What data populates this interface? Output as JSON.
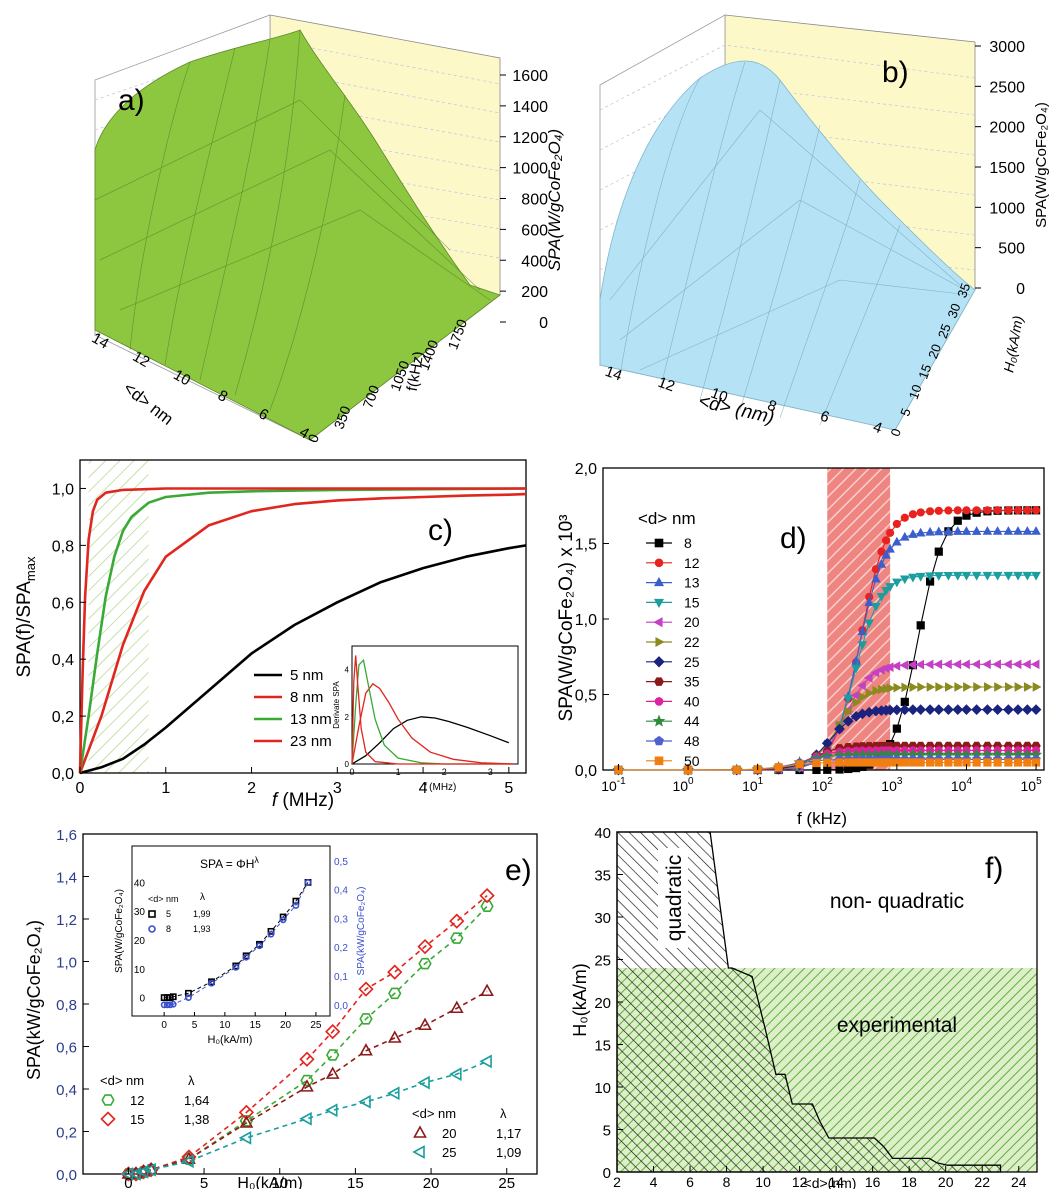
{
  "chart_data": [
    {
      "id": "a",
      "type": "surface3d",
      "panel_label": "a)",
      "zlabel": "SPA(W/gCoFe₂O₄)",
      "zticks": [
        "0",
        "200",
        "400",
        "600",
        "800",
        "1000",
        "1200",
        "1400",
        "1600"
      ],
      "xlabel": "<d> nm",
      "xticks": [
        "14",
        "12",
        "10",
        "8",
        "6",
        "4"
      ],
      "ylabel": "f(kHz)",
      "yticks": [
        "0",
        "350",
        "700",
        "1050",
        "1400",
        "1750"
      ],
      "surface_color": "#8dc63f",
      "wall_color": "#fdf8c8",
      "peak_value": 1600
    },
    {
      "id": "b",
      "type": "surface3d",
      "panel_label": "b)",
      "zlabel": "SPA(W/gCoFe₂O₄)",
      "zticks": [
        "0",
        "500",
        "1000",
        "1500",
        "2000",
        "2500",
        "3000"
      ],
      "xlabel": "<d> (nm)",
      "xticks": [
        "14",
        "12",
        "10",
        "8",
        "6",
        "4"
      ],
      "ylabel": "H₀(kA/m)",
      "yticks": [
        "0",
        "5",
        "10",
        "15",
        "20",
        "25",
        "30",
        "35"
      ],
      "surface_color": "#b5e2f5",
      "wall_color": "#fdf8c8",
      "peak_value": 3000
    },
    {
      "id": "c",
      "type": "line",
      "panel_label": "c)",
      "xlabel_italic": "f",
      "xlabel_rest": " (MHz)",
      "ylabel": "SPA(f)/SPA",
      "ylabel_sub": "max",
      "xlim": [
        0,
        5.2
      ],
      "ylim": [
        0,
        1.1
      ],
      "xticks": [
        "0",
        "1",
        "2",
        "3",
        "4",
        "5"
      ],
      "yticks": [
        "0,0",
        "0,2",
        "0,4",
        "0,6",
        "0,8",
        "1,0"
      ],
      "hatch_region": [
        0.1,
        0.8
      ],
      "series": [
        {
          "name": "5 nm",
          "color": "#000000",
          "x": [
            0,
            0.25,
            0.5,
            0.75,
            1,
            1.5,
            2,
            2.5,
            3,
            3.5,
            4,
            4.5,
            5,
            5.2
          ],
          "y": [
            0,
            0.02,
            0.05,
            0.1,
            0.16,
            0.29,
            0.42,
            0.52,
            0.6,
            0.67,
            0.72,
            0.76,
            0.79,
            0.8
          ]
        },
        {
          "name": "8 nm",
          "color": "#e0261e",
          "x": [
            0,
            0.25,
            0.5,
            0.75,
            1,
            1.5,
            2,
            2.5,
            3,
            3.5,
            4,
            4.5,
            5,
            5.2
          ],
          "y": [
            0,
            0.2,
            0.45,
            0.64,
            0.76,
            0.87,
            0.92,
            0.945,
            0.958,
            0.965,
            0.97,
            0.975,
            0.978,
            0.98
          ]
        },
        {
          "name": "13 nm",
          "color": "#3aa935",
          "x": [
            0,
            0.1,
            0.2,
            0.3,
            0.4,
            0.5,
            0.6,
            0.8,
            1,
            1.5,
            2,
            3,
            5.2
          ],
          "y": [
            0,
            0.2,
            0.42,
            0.62,
            0.76,
            0.85,
            0.9,
            0.95,
            0.97,
            0.985,
            0.99,
            0.995,
            1.0
          ]
        },
        {
          "name": "23 nm",
          "color": "#e0261e",
          "x": [
            0,
            0.03,
            0.06,
            0.1,
            0.15,
            0.2,
            0.3,
            0.5,
            1,
            5.2
          ],
          "y": [
            0,
            0.35,
            0.62,
            0.82,
            0.92,
            0.96,
            0.985,
            0.995,
            1.0,
            1.0
          ]
        }
      ],
      "inset": {
        "ylabel": "Derivate SPA",
        "xlabel_italic": "f",
        "xlabel_rest": " (MHz)",
        "xticks": [
          "0",
          "1",
          "2",
          "3"
        ],
        "yticks": [
          "0",
          "2",
          "4"
        ],
        "xlim": [
          0,
          3.6
        ],
        "ylim": [
          0,
          5
        ],
        "series": [
          {
            "color": "#000000",
            "x": [
              0,
              0.3,
              0.6,
              0.9,
              1.2,
              1.5,
              1.8,
              2.1,
              2.5,
              3,
              3.4
            ],
            "y": [
              0,
              0.35,
              0.9,
              1.5,
              1.85,
              2.0,
              1.95,
              1.8,
              1.55,
              1.2,
              0.9
            ]
          },
          {
            "color": "#e0261e",
            "x": [
              0,
              0.15,
              0.3,
              0.45,
              0.6,
              0.8,
              1.0,
              1.3,
              1.7,
              2.2,
              2.8,
              3.5
            ],
            "y": [
              0,
              1.6,
              3.0,
              3.4,
              3.2,
              2.6,
              1.9,
              1.1,
              0.5,
              0.2,
              0.05,
              0
            ]
          },
          {
            "color": "#3aa935",
            "x": [
              0,
              0.08,
              0.15,
              0.25,
              0.35,
              0.5,
              0.7,
              1.0,
              1.5,
              2,
              3.5
            ],
            "y": [
              0,
              2.5,
              4.2,
              4.4,
              3.4,
              1.9,
              0.8,
              0.25,
              0.05,
              0,
              0
            ]
          },
          {
            "color": "#e0261e",
            "x": [
              0,
              0.04,
              0.08,
              0.12,
              0.2,
              0.3,
              0.5,
              1,
              3.5
            ],
            "y": [
              0,
              3.5,
              4.6,
              3.5,
              1.5,
              0.5,
              0.1,
              0,
              0
            ]
          }
        ]
      }
    },
    {
      "id": "d",
      "type": "scatter",
      "panel_label": "d)",
      "xlabel": "f (kHz)",
      "ylabel": "SPA(W/gCoFe₂O₄) x 10³",
      "xscale": "log",
      "xlim": [
        0.06,
        130000
      ],
      "ylim": [
        0,
        2.0
      ],
      "xticks": [
        {
          "e": "-1"
        },
        {
          "e": "0"
        },
        {
          "e": "1"
        },
        {
          "e": "2"
        },
        {
          "e": "3"
        },
        {
          "e": "4"
        },
        {
          "e": "5"
        }
      ],
      "yticks": [
        "0,0",
        "0,5",
        "1,0",
        "1,5",
        "2,0"
      ],
      "highlight_band": [
        100,
        800
      ],
      "legend_title": "<d> nm",
      "series": [
        {
          "name": "8",
          "color": "#000000",
          "marker": "square",
          "plateau": 1.72,
          "fc": 2000
        },
        {
          "name": "12",
          "color": "#e8221f",
          "marker": "circle",
          "plateau": 1.72,
          "fc": 300
        },
        {
          "name": "13",
          "color": "#3a5fcd",
          "marker": "tri-up",
          "plateau": 1.58,
          "fc": 280
        },
        {
          "name": "15",
          "color": "#1a9e9e",
          "marker": "tri-down",
          "plateau": 1.29,
          "fc": 250
        },
        {
          "name": "20",
          "color": "#c441c4",
          "marker": "tri-left",
          "plateau": 0.7,
          "fc": 180
        },
        {
          "name": "22",
          "color": "#8a8a1e",
          "marker": "tri-right",
          "plateau": 0.55,
          "fc": 140
        },
        {
          "name": "25",
          "color": "#1a237e",
          "marker": "diamond",
          "plateau": 0.4,
          "fc": 110
        },
        {
          "name": "35",
          "color": "#8b1a1a",
          "marker": "hexagon",
          "plateau": 0.16,
          "fc": 60
        },
        {
          "name": "40",
          "color": "#e020a0",
          "marker": "circle",
          "plateau": 0.13,
          "fc": 50
        },
        {
          "name": "44",
          "color": "#2e8b3a",
          "marker": "star",
          "plateau": 0.1,
          "fc": 40
        },
        {
          "name": "48",
          "color": "#5060d0",
          "marker": "pentagon",
          "plateau": 0.07,
          "fc": 30
        },
        {
          "name": "50",
          "color": "#f07f10",
          "marker": "square",
          "plateau": 0.05,
          "fc": 25
        }
      ]
    },
    {
      "id": "e",
      "type": "scatter",
      "panel_label": "e)",
      "xlabel": "H₀(kA/m)",
      "ylabel": "SPA(kW/gCoFe₂O₄)",
      "xlim": [
        -3,
        27
      ],
      "ylim": [
        0,
        1.6
      ],
      "xticks": [
        "0",
        "5",
        "10",
        "15",
        "20",
        "25"
      ],
      "yticks": [
        "0,0",
        "0,2",
        "0,4",
        "0,6",
        "0,8",
        "1,0",
        "1,2",
        "1,4",
        "1,6"
      ],
      "legend1": {
        "header_d": "<d> nm",
        "header_l": "λ",
        "rows": [
          {
            "d": "12",
            "l": "1,64"
          },
          {
            "d": "15",
            "l": "1,38"
          }
        ]
      },
      "legend2": {
        "header_d": "<d> nm",
        "header_l": "λ",
        "rows": [
          {
            "d": "20",
            "l": "1,17"
          },
          {
            "d": "25",
            "l": "1,09"
          }
        ]
      },
      "series": [
        {
          "name": "12",
          "color": "#3aa935",
          "marker": "hexagon",
          "x": [
            0,
            0.5,
            1,
            1.5,
            4,
            7.8,
            11.8,
            13.5,
            15.7,
            17.6,
            19.6,
            21.7,
            23.7
          ],
          "y": [
            0,
            0,
            0.01,
            0.02,
            0.07,
            0.25,
            0.44,
            0.56,
            0.73,
            0.85,
            0.99,
            1.11,
            1.26
          ]
        },
        {
          "name": "15",
          "color": "#e0261e",
          "marker": "diamond",
          "x": [
            0,
            0.5,
            1,
            1.5,
            4,
            7.8,
            11.8,
            13.5,
            15.7,
            17.6,
            19.6,
            21.7,
            23.7
          ],
          "y": [
            0,
            0,
            0.01,
            0.02,
            0.08,
            0.29,
            0.54,
            0.67,
            0.87,
            0.95,
            1.07,
            1.19,
            1.31
          ]
        },
        {
          "name": "20",
          "color": "#8b1a1a",
          "marker": "tri-up",
          "x": [
            0,
            0.5,
            1,
            1.5,
            4,
            7.8,
            11.8,
            13.5,
            15.7,
            17.6,
            19.6,
            21.7,
            23.7
          ],
          "y": [
            0,
            0,
            0.01,
            0.02,
            0.07,
            0.24,
            0.41,
            0.47,
            0.58,
            0.64,
            0.7,
            0.78,
            0.86
          ]
        },
        {
          "name": "25",
          "color": "#1a9e9e",
          "marker": "tri-left",
          "x": [
            0,
            0.5,
            1,
            1.5,
            4,
            7.8,
            11.8,
            13.5,
            15.7,
            17.6,
            19.6,
            21.7,
            23.7
          ],
          "y": [
            0,
            0,
            0.01,
            0.02,
            0.06,
            0.17,
            0.26,
            0.3,
            0.34,
            0.38,
            0.43,
            0.47,
            0.53
          ]
        }
      ],
      "inset": {
        "formula": "SPA = ΦH",
        "formula_sup": "λ",
        "ylabel_left": "SPA(W/gCoFe₂O₄)",
        "ylabel_right": "SPA(kW/gCoFe₂O₄)",
        "xlabel": "H₀(kA/m)",
        "xticks": [
          "0",
          "5",
          "10",
          "15",
          "20",
          "25"
        ],
        "yticks_left": [
          "0",
          "10",
          "20",
          "30",
          "40"
        ],
        "yticks_right": [
          "0,0",
          "0,1",
          "0,2",
          "0,3",
          "0,4",
          "0,5"
        ],
        "legend": {
          "header_d": "<d> nm",
          "header_l": "λ",
          "rows": [
            {
              "d": "5",
              "l": "1,99"
            },
            {
              "d": "8",
              "l": "1,93"
            }
          ]
        },
        "series": [
          {
            "name": "5",
            "color": "#000000",
            "marker": "square",
            "x": [
              0,
              0.5,
              1,
              1.5,
              4,
              7.8,
              11.8,
              13.5,
              15.7,
              17.6,
              19.6,
              21.7,
              23.7
            ],
            "y": [
              0,
              0,
              0,
              0.3,
              1.5,
              5.5,
              11,
              14.5,
              18.5,
              23,
              28,
              33.5,
              40
            ]
          },
          {
            "name": "8",
            "color": "#3a4fcd",
            "marker": "circle",
            "x": [
              0,
              0.5,
              1,
              1.5,
              4,
              7.8,
              11.8,
              13.5,
              15.7,
              17.6,
              19.6,
              21.7,
              23.7
            ],
            "y": [
              -2.5,
              -2.5,
              -2.5,
              -2.3,
              0,
              5,
              10.5,
              14,
              18,
              22,
              27,
              32,
              40
            ]
          }
        ]
      }
    },
    {
      "id": "f",
      "type": "area",
      "panel_label": "f)",
      "xlabel": "<d>(nm)",
      "ylabel": "H₀(kA/m)",
      "xlim": [
        2,
        25
      ],
      "ylim": [
        0,
        40
      ],
      "xticks": [
        "2",
        "4",
        "6",
        "8",
        "10",
        "12",
        "14",
        "16",
        "18",
        "20",
        "22",
        "24"
      ],
      "yticks": [
        "0",
        "5",
        "10",
        "15",
        "20",
        "25",
        "30",
        "35",
        "40"
      ],
      "region_labels": {
        "quadratic": "quadratic",
        "non_quadratic": "non- quadratic",
        "experimental": "experimental"
      },
      "experimental_h": 24,
      "boundary": {
        "x": [
          2,
          7.1,
          8.1,
          8.3,
          9.4,
          10.1,
          10.7,
          11.2,
          11.6,
          12.7,
          13.1,
          13.6,
          16.1,
          16.6,
          17.1,
          19.1,
          19.5,
          20.1,
          23
        ],
        "y": [
          40,
          40,
          24,
          24,
          23,
          17,
          11.5,
          11.5,
          8,
          8,
          6,
          4,
          4,
          3,
          1.6,
          1.6,
          1.1,
          0.8,
          0.8
        ]
      }
    }
  ]
}
